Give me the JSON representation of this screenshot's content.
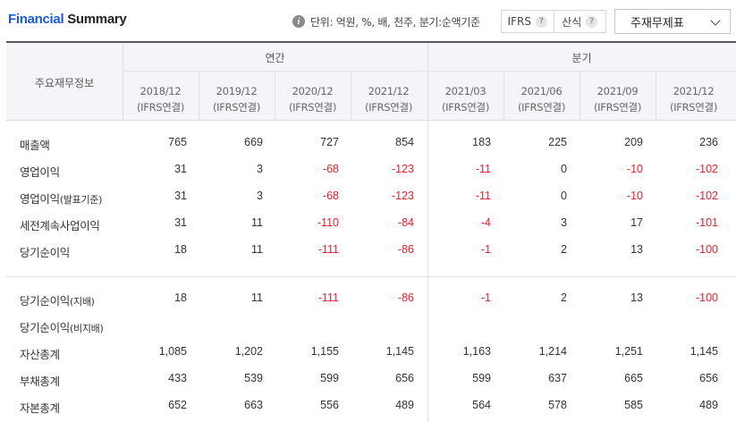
{
  "header": {
    "title_part1": "Financial",
    "title_part2": "Summary",
    "unit_text": "단위: 억원, %, 배, 천주, 분기:순액기준",
    "std_label": "IFRS",
    "calc_label": "산식",
    "dropdown_value": "주재무제표"
  },
  "table": {
    "corner_label": "주요재무정보",
    "group_annual": "연간",
    "group_quarter": "분기",
    "periods": [
      {
        "date": "2018/12",
        "basis": "(IFRS연결)"
      },
      {
        "date": "2019/12",
        "basis": "(IFRS연결)"
      },
      {
        "date": "2020/12",
        "basis": "(IFRS연결)"
      },
      {
        "date": "2021/12",
        "basis": "(IFRS연결)"
      },
      {
        "date": "2021/03",
        "basis": "(IFRS연결)"
      },
      {
        "date": "2021/06",
        "basis": "(IFRS연결)"
      },
      {
        "date": "2021/09",
        "basis": "(IFRS연결)"
      },
      {
        "date": "2021/12",
        "basis": "(IFRS연결)"
      }
    ],
    "rows": [
      {
        "label": "매출액",
        "values": [
          "765",
          "669",
          "727",
          "854",
          "183",
          "225",
          "209",
          "236"
        ]
      },
      {
        "label": "영업이익",
        "values": [
          "31",
          "3",
          "-68",
          "-123",
          "-11",
          "0",
          "-10",
          "-102"
        ]
      },
      {
        "label": "영업이익",
        "label_suffix": "(발표기준)",
        "values": [
          "31",
          "3",
          "-68",
          "-123",
          "-11",
          "0",
          "-10",
          "-102"
        ]
      },
      {
        "label": "세전계속사업이익",
        "values": [
          "31",
          "11",
          "-110",
          "-84",
          "-4",
          "3",
          "17",
          "-101"
        ]
      },
      {
        "label": "당기순이익",
        "values": [
          "18",
          "11",
          "-111",
          "-86",
          "-1",
          "2",
          "13",
          "-100"
        ]
      },
      {
        "label": "당기순이익",
        "label_suffix": "(지배)",
        "values": [
          "18",
          "11",
          "-111",
          "-86",
          "-1",
          "2",
          "13",
          "-100"
        ]
      },
      {
        "label": "당기순이익",
        "label_suffix": "(비지배)",
        "values": [
          "",
          "",
          "",
          "",
          "",
          "",
          "",
          ""
        ]
      },
      {
        "label": "자산총계",
        "values": [
          "1,085",
          "1,202",
          "1,155",
          "1,145",
          "1,163",
          "1,214",
          "1,251",
          "1,145"
        ]
      },
      {
        "label": "부채총계",
        "values": [
          "433",
          "539",
          "599",
          "656",
          "599",
          "637",
          "665",
          "656"
        ]
      },
      {
        "label": "자본총계",
        "values": [
          "652",
          "663",
          "556",
          "489",
          "564",
          "578",
          "585",
          "489"
        ]
      }
    ]
  },
  "colors": {
    "title_accent": "#1b5ad8",
    "negative": "#e0212e"
  }
}
